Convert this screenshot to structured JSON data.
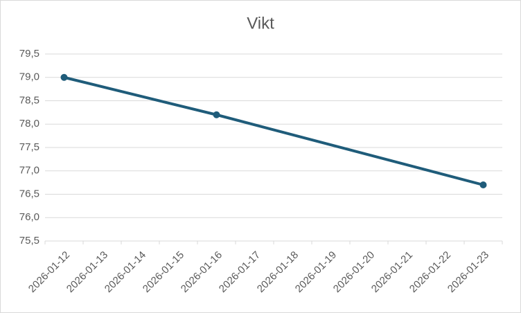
{
  "chart_data": {
    "type": "line",
    "title": "Vikt",
    "categories": [
      "2026-01-12",
      "2026-01-13",
      "2026-01-14",
      "2026-01-15",
      "2026-01-16",
      "2026-01-17",
      "2026-01-18",
      "2026-01-19",
      "2026-01-20",
      "2026-01-21",
      "2026-01-22",
      "2026-01-23"
    ],
    "x": [
      "2026-01-12",
      "2026-01-16",
      "2026-01-23"
    ],
    "values": [
      79.0,
      78.2,
      76.7
    ],
    "color": "#1f5c7a",
    "ylim": [
      75.5,
      79.5
    ],
    "yticks": [
      {
        "value": 75.5,
        "label": "75,5"
      },
      {
        "value": 76,
        "label": "76,0"
      },
      {
        "value": 76.5,
        "label": "76,5"
      },
      {
        "value": 77,
        "label": "77,0"
      },
      {
        "value": 77.5,
        "label": "77,5"
      },
      {
        "value": 78,
        "label": "78,0"
      },
      {
        "value": 78.5,
        "label": "78,5"
      },
      {
        "value": 79,
        "label": "79,0"
      },
      {
        "value": 79.5,
        "label": "79,5"
      }
    ],
    "grid": true
  }
}
